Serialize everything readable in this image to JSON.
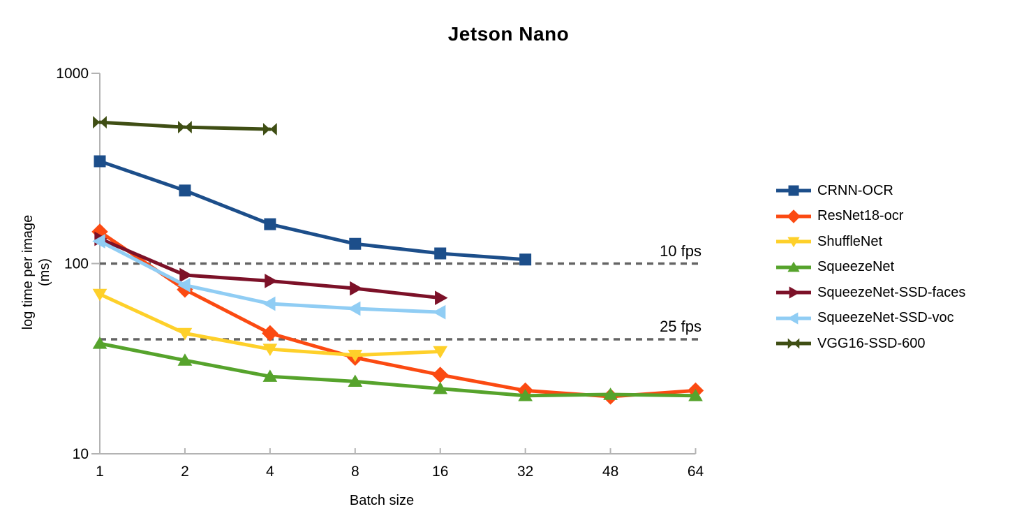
{
  "page": {
    "background": "#ffffff",
    "text_color": "#000000"
  },
  "chart_data": {
    "type": "line",
    "title": "Jetson Nano",
    "xlabel": "Batch size",
    "ylabel": "log time per image",
    "ylabel_unit": "(ms)",
    "x_axis_type": "category",
    "x_categories": [
      "1",
      "2",
      "4",
      "8",
      "16",
      "32",
      "48",
      "64"
    ],
    "y_scale": "log",
    "y_ticks": [
      "1000",
      "100",
      "10"
    ],
    "ylim": [
      10,
      1000
    ],
    "grid": false,
    "legend_position": "right",
    "axis_color": "#b3b3b3",
    "reference_line_color": "#646464",
    "reference_lines": [
      {
        "label": "10 fps",
        "value_ms": 100
      },
      {
        "label": "25 fps",
        "value_ms": 40
      }
    ],
    "series": [
      {
        "name": "CRNN-OCR",
        "color": "#1c4e8a",
        "marker": "square",
        "batch_sizes": [
          1,
          2,
          4,
          8,
          16,
          32
        ],
        "values": [
          345,
          242,
          161,
          127,
          113,
          105
        ]
      },
      {
        "name": "ResNet18-ocr",
        "color": "#fb4a12",
        "marker": "diamond",
        "batch_sizes": [
          1,
          2,
          4,
          8,
          16,
          32,
          48,
          64
        ],
        "values": [
          147,
          73,
          43,
          32,
          26,
          21.5,
          20,
          21.5
        ]
      },
      {
        "name": "ShuffleNet",
        "color": "#fed02a",
        "marker": "triangle-down",
        "batch_sizes": [
          1,
          2,
          4,
          8,
          16
        ],
        "values": [
          69,
          43,
          35.5,
          33,
          34.5
        ]
      },
      {
        "name": "SqueezeNet",
        "color": "#56a32c",
        "marker": "triangle-up",
        "batch_sizes": [
          1,
          2,
          4,
          8,
          16,
          32,
          48,
          64
        ],
        "values": [
          38,
          31,
          25.5,
          24,
          22,
          20.2,
          20.5,
          20.2
        ]
      },
      {
        "name": "SqueezeNet-SSD-faces",
        "color": "#7c1128",
        "marker": "triangle-right",
        "batch_sizes": [
          1,
          2,
          4,
          8,
          16
        ],
        "values": [
          135,
          87,
          81,
          74,
          66
        ]
      },
      {
        "name": "SqueezeNet-SSD-voc",
        "color": "#90cdf4",
        "marker": "triangle-left",
        "batch_sizes": [
          1,
          2,
          4,
          8,
          16
        ],
        "values": [
          131,
          77,
          61.5,
          58,
          55.5
        ]
      },
      {
        "name": "VGG16-SSD-600",
        "color": "#3f4e14",
        "marker": "bowtie",
        "batch_sizes": [
          1,
          2,
          4
        ],
        "values": [
          553,
          521,
          508
        ]
      }
    ]
  }
}
